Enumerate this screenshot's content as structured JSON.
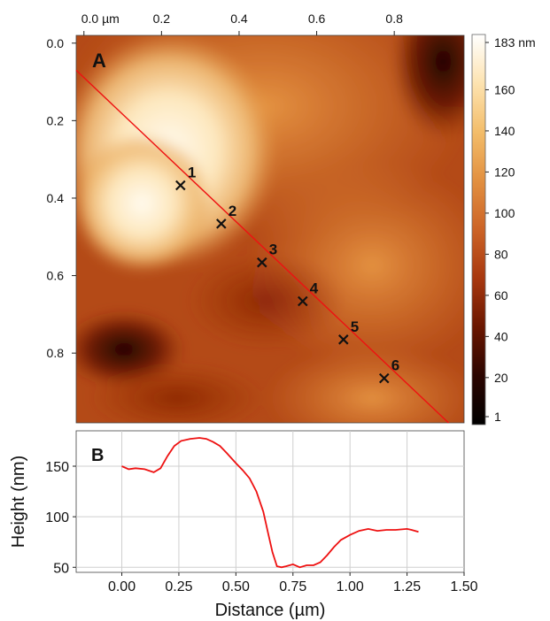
{
  "chart_data": [
    {
      "type": "heatmap",
      "panel_label": "A",
      "x_ticks": [
        "0.0 µm",
        "0.2",
        "0.4",
        "0.6",
        "0.8"
      ],
      "x_tick_values": [
        0.0,
        0.2,
        0.4,
        0.6,
        0.8
      ],
      "y_ticks": [
        "0.0",
        "0.2",
        "0.4",
        "0.6",
        "0.8"
      ],
      "y_tick_values": [
        0.0,
        0.2,
        0.4,
        0.6,
        0.8
      ],
      "xlim": [
        -0.02,
        0.98
      ],
      "ylim": [
        -0.02,
        0.98
      ],
      "colorbar": {
        "ticks": [
          "183 nm",
          "160",
          "140",
          "120",
          "100",
          "80",
          "60",
          "40",
          "20",
          "1"
        ],
        "tick_values": [
          183,
          160,
          140,
          120,
          100,
          80,
          60,
          40,
          20,
          1
        ],
        "range": [
          1,
          183
        ],
        "colors": [
          "#000000",
          "#2b0500",
          "#6a1600",
          "#a8380f",
          "#cc6326",
          "#e29040",
          "#f3bd6a",
          "#fde3b0",
          "#ffffff"
        ]
      },
      "profile_line": {
        "start": [
          -0.02,
          0.07
        ],
        "end": [
          0.94,
          0.98
        ],
        "color": "#ee1111"
      },
      "profile_markers": [
        {
          "label": "1",
          "x": 0.249,
          "y": 0.367
        },
        {
          "label": "2",
          "x": 0.354,
          "y": 0.466
        },
        {
          "label": "3",
          "x": 0.459,
          "y": 0.566
        },
        {
          "label": "4",
          "x": 0.564,
          "y": 0.666
        },
        {
          "label": "5",
          "x": 0.669,
          "y": 0.765
        },
        {
          "label": "6",
          "x": 0.774,
          "y": 0.865
        }
      ]
    },
    {
      "type": "line",
      "panel_label": "B",
      "xlabel": "Distance (µm)",
      "ylabel": "Height (nm)",
      "xlim": [
        -0.2,
        1.5
      ],
      "ylim": [
        45,
        185
      ],
      "x_ticks": [
        0.0,
        0.25,
        0.5,
        0.75,
        1.0,
        1.25,
        1.5
      ],
      "x_tick_labels": [
        "0.00",
        "0.25",
        "0.50",
        "0.75",
        "1.00",
        "1.25",
        "1.50"
      ],
      "y_ticks": [
        50,
        100,
        150
      ],
      "grid": true,
      "color": "#ee1111",
      "series": [
        {
          "x": [
            0.0,
            0.03,
            0.06,
            0.1,
            0.14,
            0.17,
            0.2,
            0.23,
            0.26,
            0.3,
            0.34,
            0.37,
            0.4,
            0.43,
            0.46,
            0.5,
            0.53,
            0.56,
            0.59,
            0.62,
            0.64,
            0.66,
            0.68,
            0.7,
            0.72,
            0.75,
            0.78,
            0.81,
            0.84,
            0.87,
            0.9,
            0.93,
            0.96,
            1.0,
            1.04,
            1.08,
            1.12,
            1.16,
            1.2,
            1.25,
            1.27,
            1.3
          ],
          "y": [
            150,
            147,
            148,
            147,
            144,
            148,
            160,
            170,
            175,
            177,
            178,
            177,
            174,
            170,
            163,
            153,
            146,
            138,
            125,
            105,
            85,
            65,
            51,
            50,
            51,
            53,
            50,
            52,
            52,
            55,
            62,
            70,
            77,
            82,
            86,
            88,
            86,
            87,
            87,
            88,
            87,
            85
          ]
        }
      ]
    }
  ]
}
